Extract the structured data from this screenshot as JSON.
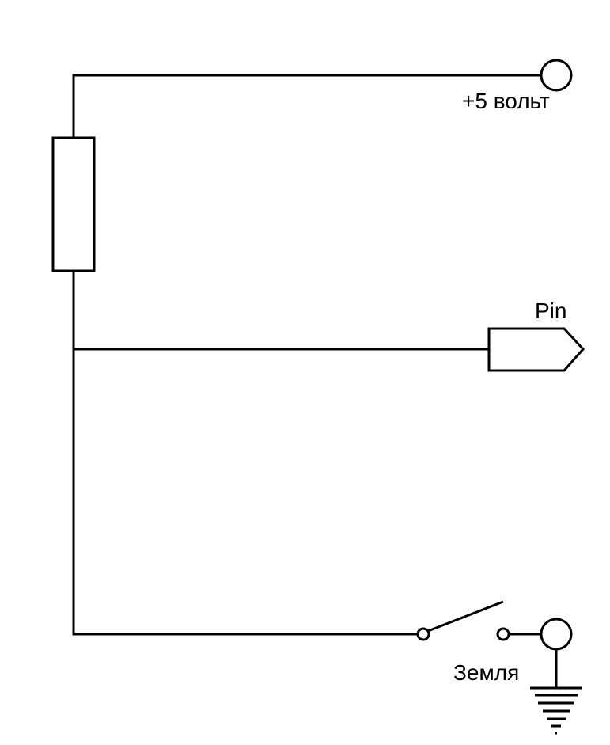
{
  "labels": {
    "supply": "+5 вольт",
    "pin": "Pin",
    "ground": "Земля"
  },
  "colors": {
    "line": "#000000",
    "background": "#ffffff"
  }
}
